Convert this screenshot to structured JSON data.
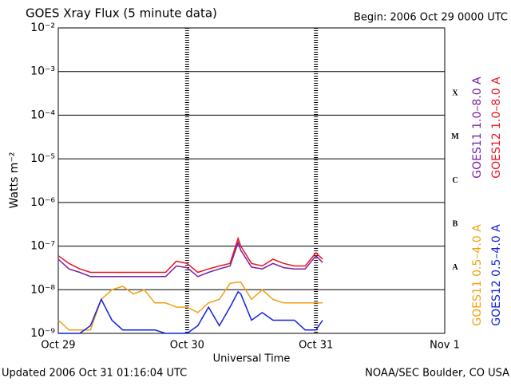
{
  "chart_data": {
    "type": "line",
    "title": "GOES Xray Flux (5 minute data)",
    "subtitle": "Begin:  2006 Oct 29 0000 UTC",
    "x_label": "Universal Time",
    "y_label": "Watts m⁻²",
    "footer_left": "Updated 2006 Oct 31 01:16:04 UTC",
    "footer_right": "NOAA/SEC Boulder, CO USA",
    "log_scale_y": true,
    "grid": true,
    "x": [
      "2006-10-29T00:00",
      "2006-10-29T02:00",
      "2006-10-29T04:00",
      "2006-10-29T06:00",
      "2006-10-29T08:00",
      "2006-10-29T10:00",
      "2006-10-29T12:00",
      "2006-10-29T14:00",
      "2006-10-29T16:00",
      "2006-10-29T18:00",
      "2006-10-29T20:00",
      "2006-10-29T22:00",
      "2006-10-30T00:00",
      "2006-10-30T02:00",
      "2006-10-30T04:00",
      "2006-10-30T06:00",
      "2006-10-30T08:00",
      "2006-10-30T09:30",
      "2006-10-30T10:00",
      "2006-10-30T12:00",
      "2006-10-30T14:00",
      "2006-10-30T16:00",
      "2006-10-30T18:00",
      "2006-10-30T20:00",
      "2006-10-30T22:00",
      "2006-10-31T00:00",
      "2006-10-31T01:15"
    ],
    "xlim": [
      "2006-10-29T00:00",
      "2006-11-01T00:00"
    ],
    "xticks": [
      {
        "value": "2006-10-29T00:00",
        "label": "Oct 29"
      },
      {
        "value": "2006-10-30T00:00",
        "label": "Oct 30"
      },
      {
        "value": "2006-10-31T00:00",
        "label": "Oct 31"
      },
      {
        "value": "2006-11-01T00:00",
        "label": "Nov 1"
      }
    ],
    "ylim": [
      1e-09,
      0.01
    ],
    "yticks": [
      {
        "value": 1e-09,
        "label": "10⁻⁹"
      },
      {
        "value": 1e-08,
        "label": "10⁻⁸"
      },
      {
        "value": 1e-07,
        "label": "10⁻⁷"
      },
      {
        "value": 1e-06,
        "label": "10⁻⁶"
      },
      {
        "value": 1e-05,
        "label": "10⁻⁵"
      },
      {
        "value": 0.0001,
        "label": "10⁻⁴"
      },
      {
        "value": 0.001,
        "label": "10⁻³"
      },
      {
        "value": 0.01,
        "label": "10⁻²"
      }
    ],
    "flare_classes": [
      {
        "label": "A",
        "value": 1e-08
      },
      {
        "label": "B",
        "value": 1e-07
      },
      {
        "label": "C",
        "value": 1e-06
      },
      {
        "label": "M",
        "value": 1e-05
      },
      {
        "label": "X",
        "value": 0.0001
      }
    ],
    "series": [
      {
        "name": "GOES11 1.0–8.0 A",
        "color": "#7a1fa2",
        "values": [
          5e-08,
          3e-08,
          2.5e-08,
          2e-08,
          2e-08,
          2e-08,
          2e-08,
          2e-08,
          2e-08,
          2e-08,
          2e-08,
          3.5e-08,
          3.2e-08,
          2e-08,
          2.5e-08,
          3e-08,
          3.5e-08,
          1.2e-07,
          8e-08,
          3.3e-08,
          3e-08,
          4e-08,
          3.2e-08,
          3e-08,
          3e-08,
          6e-08,
          4.2e-08
        ]
      },
      {
        "name": "GOES12 1.0–8.0 A",
        "color": "#e8141e",
        "values": [
          6e-08,
          4e-08,
          3e-08,
          2.5e-08,
          2.5e-08,
          2.5e-08,
          2.5e-08,
          2.5e-08,
          2.5e-08,
          2.5e-08,
          2.5e-08,
          4.5e-08,
          4e-08,
          2.5e-08,
          3e-08,
          3.5e-08,
          4e-08,
          1.5e-07,
          1e-07,
          4e-08,
          3.5e-08,
          5e-08,
          4e-08,
          3.5e-08,
          3.5e-08,
          7e-08,
          5e-08
        ]
      },
      {
        "name": "GOES11 0.5–4.0 A",
        "color": "#f0a010",
        "values": [
          2e-09,
          1.2e-09,
          1.2e-09,
          1.2e-09,
          6e-09,
          1e-08,
          1.2e-08,
          8e-09,
          1e-08,
          5e-09,
          5e-09,
          4e-09,
          4e-09,
          3e-09,
          5e-09,
          6e-09,
          1.4e-08,
          1.5e-08,
          1.5e-08,
          6e-09,
          1e-08,
          6e-09,
          5e-09,
          5e-09,
          5e-09,
          5e-09,
          5e-09
        ]
      },
      {
        "name": "GOES12 0.5–4.0 A",
        "color": "#1020e0",
        "values": [
          1e-09,
          1e-09,
          1e-09,
          1.5e-09,
          6e-09,
          2e-09,
          1.2e-09,
          1.2e-09,
          1.2e-09,
          1.2e-09,
          1e-09,
          1e-09,
          1e-09,
          1.5e-09,
          4e-09,
          1.5e-09,
          4e-09,
          9e-09,
          8e-09,
          2e-09,
          3e-09,
          2e-09,
          2e-09,
          2e-09,
          1.2e-09,
          1.2e-09,
          2e-09
        ]
      }
    ]
  }
}
